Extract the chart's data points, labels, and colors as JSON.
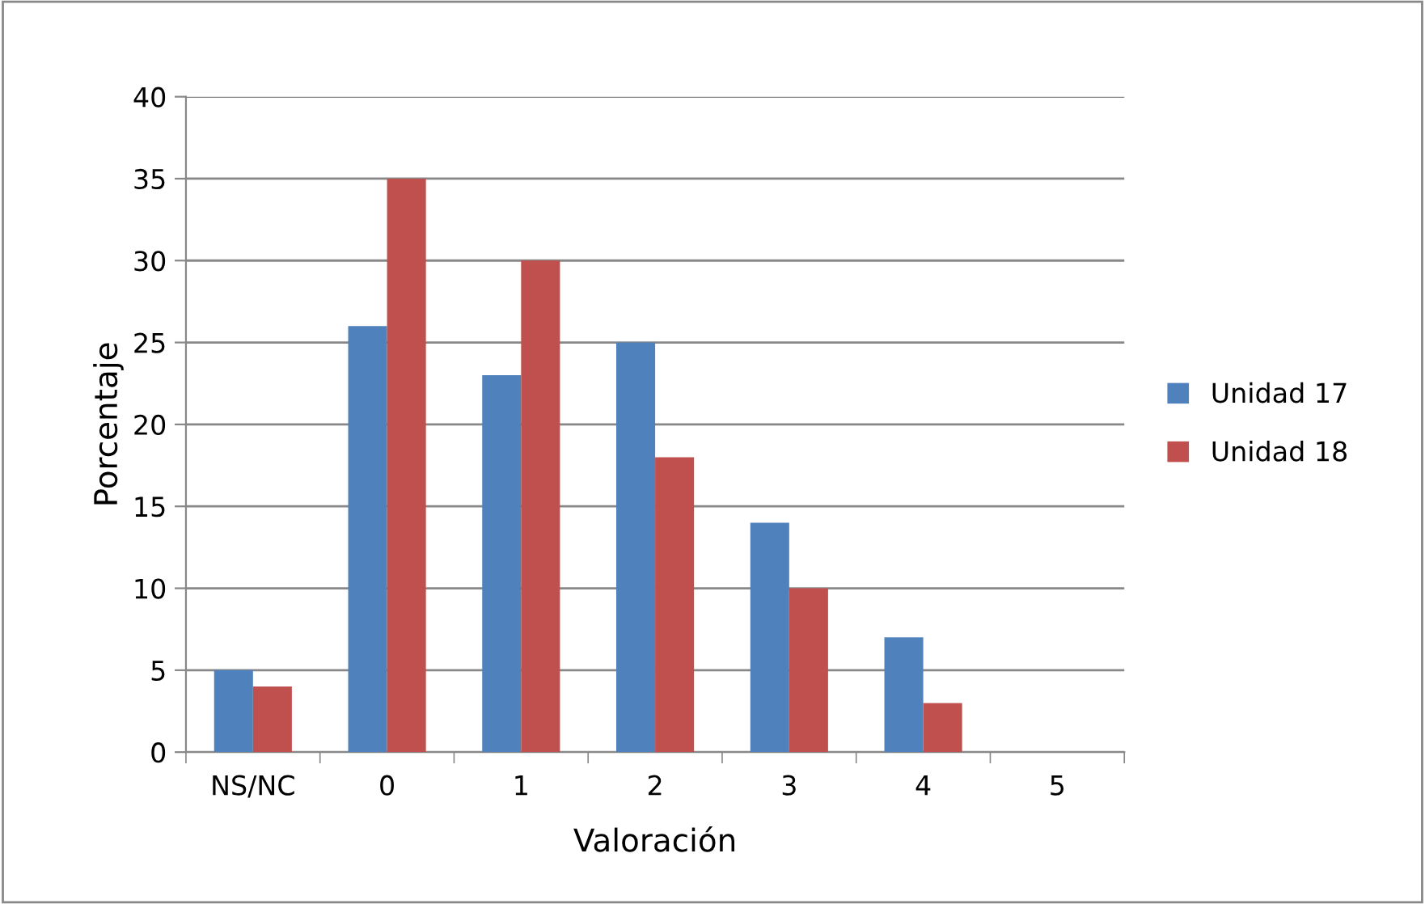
{
  "chart_data": {
    "type": "bar",
    "xlabel": "Valoración",
    "ylabel": "Porcentaje",
    "categories": [
      "NS/NC",
      "0",
      "1",
      "2",
      "3",
      "4",
      "5"
    ],
    "series": [
      {
        "name": "Unidad 17",
        "color": "#4f81bd",
        "values": [
          5,
          26,
          23,
          25,
          14,
          7,
          0
        ]
      },
      {
        "name": "Unidad 18",
        "color": "#c0504d",
        "values": [
          4,
          35,
          30,
          18,
          10,
          3,
          0
        ]
      }
    ],
    "ylim": [
      0,
      40
    ],
    "yticks": [
      0,
      5,
      10,
      15,
      20,
      25,
      30,
      35,
      40
    ],
    "grid": "y",
    "legend": "right"
  }
}
